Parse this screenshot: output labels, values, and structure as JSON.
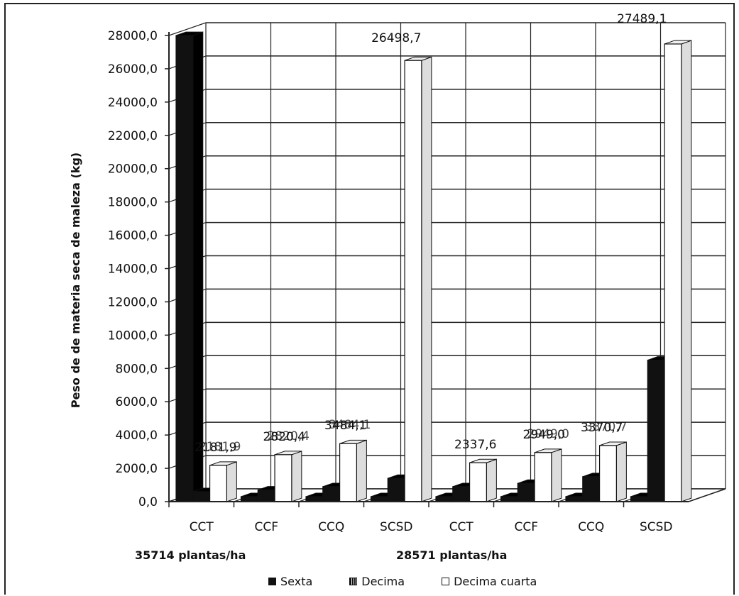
{
  "chart_data": {
    "type": "bar",
    "ylabel": "Peso de de materia seca de maleza (kg)",
    "ylim": [
      0,
      28000
    ],
    "yticks": [
      "0,0",
      "2000,0",
      "4000,0",
      "6000,0",
      "8000,0",
      "10000,0",
      "12000,0",
      "14000,0",
      "16000,0",
      "18000,0",
      "20000,0",
      "22000,0",
      "24000,0",
      "26000,0",
      "28000,0"
    ],
    "categories": [
      "CCT",
      "CCF",
      "CCQ",
      "SCSD",
      "CCT",
      "CCF",
      "CCQ",
      "SCSD"
    ],
    "groups": [
      {
        "label": "35714 plantas/ha",
        "span": [
          0,
          3
        ]
      },
      {
        "label": "28571 plantas/ha",
        "span": [
          4,
          7
        ]
      }
    ],
    "series": [
      {
        "name": "Sexta",
        "color": "#111111",
        "values": [
          28000,
          300,
          300,
          300,
          300,
          300,
          300,
          300
        ]
      },
      {
        "name": "Decima",
        "color": "#111111",
        "values": [
          600,
          700,
          900,
          1400,
          900,
          1100,
          1500,
          8500
        ]
      },
      {
        "name": "Decima cuarta",
        "color": "#ffffff",
        "values": [
          2181.9,
          2820.4,
          3484.1,
          26498.7,
          2337.6,
          2949.0,
          3370.7,
          27489.1
        ]
      }
    ],
    "data_labels": [
      "2181,9",
      "2820,4",
      "3484,1",
      "26498,7",
      "2337,6",
      "2949,0",
      "3370,7",
      "27489,1"
    ],
    "overprinted_labels": [
      "2181,9",
      "2820,4",
      "3484,1",
      "",
      "",
      "2949,0",
      "3370,7",
      ""
    ],
    "legend_position": "bottom",
    "grid": true
  }
}
